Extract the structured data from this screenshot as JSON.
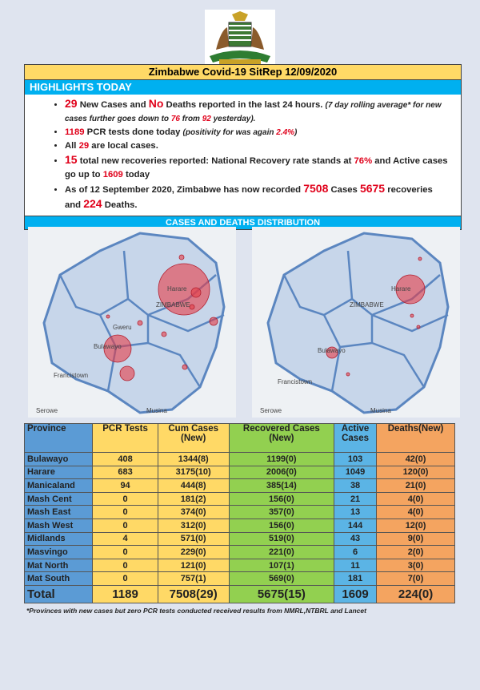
{
  "header": {
    "title": "Zimbabwe Covid-19 SitRep 12/09/2020"
  },
  "highlights": {
    "heading": "HIGHLIGHTS TODAY",
    "bullets": [
      [
        {
          "text": "29",
          "style": "red-big"
        },
        {
          "text": " New Cases and ",
          "style": "normal"
        },
        {
          "text": "No",
          "style": "red-big"
        },
        {
          "text": " Deaths reported in the last 24 hours. ",
          "style": "normal"
        },
        {
          "text": "(7 day rolling average* for new cases further goes down to ",
          "style": "italic"
        },
        {
          "text": "76",
          "style": "italic-red"
        },
        {
          "text": " from ",
          "style": "italic"
        },
        {
          "text": "92",
          "style": "italic-red"
        },
        {
          "text": " yesterday).",
          "style": "italic"
        }
      ],
      [
        {
          "text": "1189",
          "style": "red"
        },
        {
          "text": " PCR tests done today ",
          "style": "normal"
        },
        {
          "text": "(positivity for was again ",
          "style": "italic"
        },
        {
          "text": "2.4%",
          "style": "italic-red"
        },
        {
          "text": ")",
          "style": "italic"
        }
      ],
      [
        {
          "text": "All ",
          "style": "normal"
        },
        {
          "text": "29",
          "style": "red"
        },
        {
          "text": " are local cases.",
          "style": "normal"
        }
      ],
      [
        {
          "text": "15",
          "style": "red-big"
        },
        {
          "text": " total new recoveries reported: National Recovery rate stands at ",
          "style": "normal"
        },
        {
          "text": "76%",
          "style": "red"
        },
        {
          "text": " and Active cases go up to ",
          "style": "normal"
        },
        {
          "text": "1609",
          "style": "red"
        },
        {
          "text": " today",
          "style": "normal"
        }
      ],
      [
        {
          "text": "As of 12 September 2020, Zimbabwe has now recorded ",
          "style": "normal"
        },
        {
          "text": "7508",
          "style": "red-big"
        },
        {
          "text": " Cases ",
          "style": "normal"
        },
        {
          "text": "5675",
          "style": "red-big"
        },
        {
          "text": " recoveries and ",
          "style": "normal"
        },
        {
          "text": "224",
          "style": "red-big"
        },
        {
          "text": " Deaths.",
          "style": "normal"
        }
      ]
    ]
  },
  "distribution": {
    "heading": "CASES AND DEATHS DISTRIBUTION"
  },
  "maps": {
    "left": {
      "labels": [
        "Harare",
        "ZIMBABWE",
        "Gweru",
        "Bulawayo",
        "Francistown",
        "Serowe",
        "Musina"
      ]
    },
    "right": {
      "labels": [
        "Harare",
        "ZIMBABWE",
        "Bulawayo",
        "Francistown",
        "Serowe",
        "Musina"
      ]
    }
  },
  "table": {
    "header": [
      [
        "Province"
      ],
      [
        "PCR Tests"
      ],
      [
        "Cum Cases",
        "(New)"
      ],
      [
        "Recovered Cases",
        "(New)"
      ],
      [
        "Active",
        "Cases"
      ],
      [
        "Deaths(New)"
      ]
    ],
    "rows": [
      [
        "Bulawayo",
        408,
        "1344(8)",
        "1199(0)",
        103,
        "42(0)"
      ],
      [
        "Harare",
        683,
        "3175(10)",
        "2006(0)",
        1049,
        "120(0)"
      ],
      [
        "Manicaland",
        94,
        "444(8)",
        "385(14)",
        38,
        "21(0)"
      ],
      [
        "Mash Cent",
        0,
        "181(2)",
        "156(0)",
        21,
        "4(0)"
      ],
      [
        "Mash East",
        0,
        "374(0)",
        "357(0)",
        13,
        "4(0)"
      ],
      [
        "Mash West",
        0,
        "312(0)",
        "156(0)",
        144,
        "12(0)"
      ],
      [
        "Midlands",
        4,
        "571(0)",
        "519(0)",
        43,
        "9(0)"
      ],
      [
        "Masvingo",
        0,
        "229(0)",
        "221(0)",
        6,
        "2(0)"
      ],
      [
        "Mat North",
        0,
        "121(0)",
        "107(1)",
        11,
        "3(0)"
      ],
      [
        "Mat South",
        0,
        "757(1)",
        "569(0)",
        181,
        "7(0)"
      ]
    ],
    "total": [
      "Total",
      1189,
      "7508(29)",
      "5675(15)",
      1609,
      "224(0)"
    ]
  },
  "footnote": "*Provinces with new cases but zero PCR tests conducted received results from NMRL,NTBRL and Lancet"
}
